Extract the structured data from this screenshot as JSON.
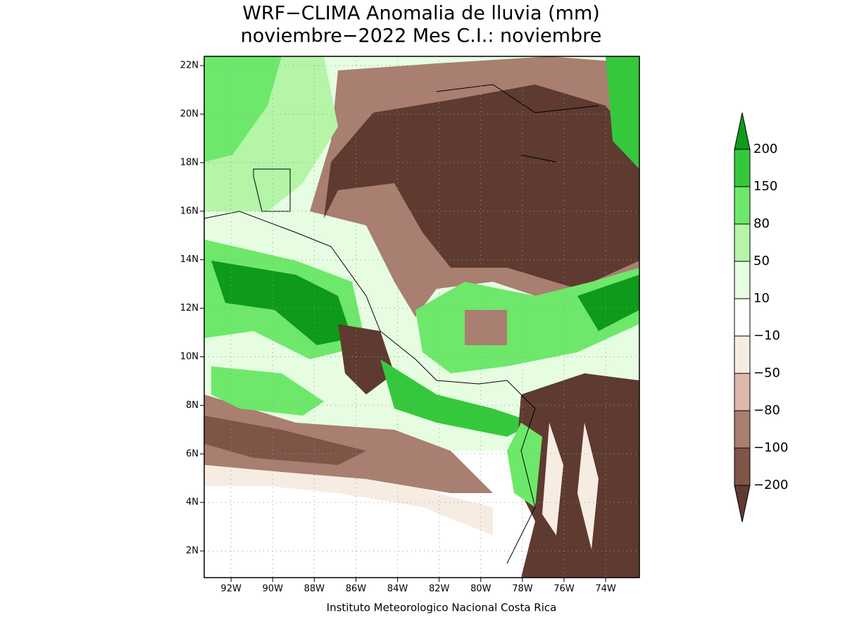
{
  "map": {
    "title": [
      "WRF−CLIMA Anomalia de lluvia (mm)",
      "noviembre−2022 Mes C.I.: noviembre"
    ],
    "xlim": [
      -93.29,
      -72.38
    ],
    "ylim": [
      0.9,
      22.38
    ],
    "xticks": [
      {
        "value": -92,
        "label": "92W"
      },
      {
        "value": -90,
        "label": "90W"
      },
      {
        "value": -88,
        "label": "88W"
      },
      {
        "value": -86,
        "label": "86W"
      },
      {
        "value": -84,
        "label": "84W"
      },
      {
        "value": -82,
        "label": "82W"
      },
      {
        "value": -80,
        "label": "80W"
      },
      {
        "value": -78,
        "label": "78W"
      },
      {
        "value": -76,
        "label": "76W"
      },
      {
        "value": -74,
        "label": "74W"
      }
    ],
    "yticks": [
      {
        "value": 2,
        "label": "2N"
      },
      {
        "value": 4,
        "label": "4N"
      },
      {
        "value": 6,
        "label": "6N"
      },
      {
        "value": 8,
        "label": "8N"
      },
      {
        "value": 10,
        "label": "10N"
      },
      {
        "value": 12,
        "label": "12N"
      },
      {
        "value": 14,
        "label": "14N"
      },
      {
        "value": 16,
        "label": "16N"
      },
      {
        "value": 18,
        "label": "18N"
      },
      {
        "value": 20,
        "label": "20N"
      },
      {
        "value": 22,
        "label": "22N"
      }
    ],
    "colorbar": {
      "levels": [
        200,
        150,
        80,
        50,
        10,
        {
          "value": -10,
          "label": "−10"
        },
        {
          "value": -50,
          "label": "−50"
        },
        {
          "value": -80,
          "label": "−80"
        },
        {
          "value": -100,
          "label": "−100"
        },
        {
          "value": -200,
          "label": "−200"
        }
      ],
      "colors": [
        "#0e9a1a",
        "#36c83c",
        "#6ee86a",
        "#b4f5a8",
        "#e6fde2",
        "#ffffff",
        "#f7ece2",
        "#deb8aa",
        "#a87f70",
        "#7f5548",
        "#5e3a30"
      ]
    },
    "footer": "Instituto Meteorologico Nacional Costa Rica"
  }
}
